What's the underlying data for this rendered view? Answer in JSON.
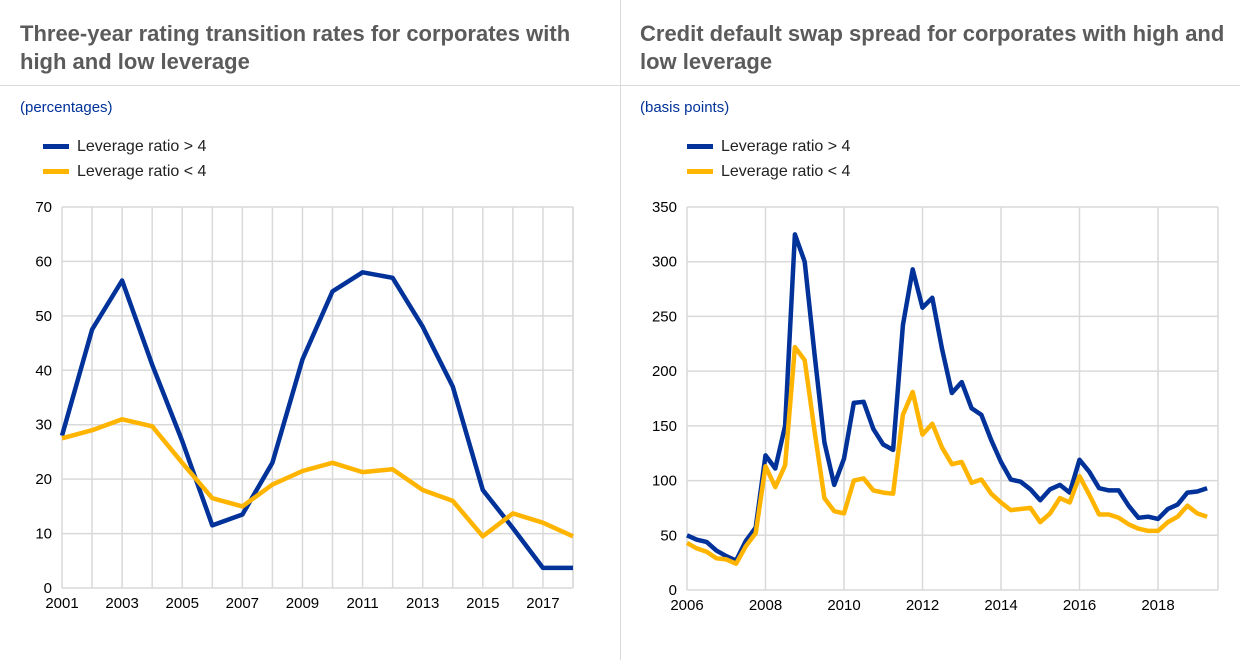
{
  "colors": {
    "high": "#003299",
    "low": "#ffb400",
    "title": "#5b5b5b",
    "grid": "#d9d9d9"
  },
  "chart_data": [
    {
      "type": "line",
      "title": "Three-year rating transition rates for corporates with high and low leverage",
      "subtitle": "(percentages)",
      "ylim": [
        0,
        70
      ],
      "yticks": [
        0,
        10,
        20,
        30,
        40,
        50,
        60,
        70
      ],
      "xticks": [
        2001,
        2003,
        2005,
        2007,
        2009,
        2011,
        2013,
        2015,
        2017
      ],
      "grid": true,
      "legend": "top-left",
      "x": [
        2001,
        2002,
        2003,
        2004,
        2005,
        2006,
        2007,
        2008,
        2009,
        2010,
        2011,
        2012,
        2013,
        2014,
        2015,
        2016,
        2017,
        2018
      ],
      "series": [
        {
          "name": "Leverage ratio > 4",
          "color": "#003299",
          "values": [
            28,
            47.5,
            56.5,
            41,
            27,
            11.5,
            13.5,
            23,
            42,
            54.5,
            58,
            57,
            48,
            37,
            18,
            11,
            3.7,
            3.7
          ]
        },
        {
          "name": "Leverage ratio < 4",
          "color": "#ffb400",
          "values": [
            27.5,
            29,
            31,
            29.7,
            23,
            16.5,
            15,
            19,
            21.5,
            23,
            21.3,
            21.8,
            18,
            16,
            9.5,
            13.7,
            12,
            9.5
          ]
        }
      ]
    },
    {
      "type": "line",
      "title": "Credit default swap spread for corporates with high and low leverage",
      "subtitle": "(basis points)",
      "ylim": [
        0,
        350
      ],
      "yticks": [
        0,
        50,
        100,
        150,
        200,
        250,
        300,
        350
      ],
      "xticks": [
        2006,
        2008,
        2010,
        2012,
        2014,
        2016,
        2018
      ],
      "grid": true,
      "legend": "top-left",
      "x_start": 2006,
      "x_frequency": "quarterly",
      "series": [
        {
          "name": "Leverage ratio > 4",
          "color": "#003299",
          "values": [
            50,
            46,
            44,
            36,
            31,
            27,
            45,
            57,
            123,
            111,
            150,
            325,
            300,
            215,
            135,
            96,
            120,
            171,
            172,
            147,
            133,
            128,
            242,
            293,
            258,
            267,
            220,
            180,
            190,
            166,
            160,
            137,
            117,
            101,
            99,
            92,
            82,
            92,
            96,
            89,
            119,
            108,
            93,
            91,
            91,
            77,
            66,
            67,
            65,
            74,
            78,
            89,
            90,
            93
          ]
        },
        {
          "name": "Leverage ratio < 4",
          "color": "#ffb400",
          "values": [
            43,
            38,
            35,
            29,
            28,
            24,
            40,
            52,
            113,
            94,
            114,
            222,
            210,
            145,
            84,
            72,
            70,
            100,
            102,
            91,
            89,
            88,
            160,
            181,
            142,
            152,
            130,
            115,
            117,
            98,
            101,
            88,
            80,
            73,
            74,
            75,
            62,
            70,
            84,
            80,
            104,
            87,
            69,
            69,
            66,
            60,
            56,
            54,
            54,
            62,
            67,
            77,
            70,
            67
          ]
        }
      ]
    }
  ]
}
